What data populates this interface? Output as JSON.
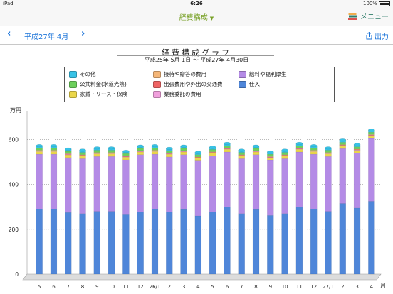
{
  "status_bar": {
    "device": "iPad",
    "time": "6:26",
    "battery": "100%"
  },
  "nav": {
    "title": "経費構成",
    "menu_label": "メニュー"
  },
  "toolbar": {
    "period": "平成27年 4月",
    "prev_icon": "chevron-left-icon",
    "next_icon": "chevron-right-icon",
    "output_label": "出力"
  },
  "colors": {
    "accent": "#7aa22a",
    "link": "#1a73d9",
    "menu": "#2f7d6a"
  },
  "chart_data": {
    "type": "bar",
    "stacked": true,
    "title": "経費構成グラフ",
    "subtitle": "平成25年 5月 1日 〜 平成27年 4月30日",
    "ylabel": "万円",
    "xlabel": "月",
    "ylim": [
      0,
      700
    ],
    "yticks": [
      0,
      200,
      400,
      600
    ],
    "grid": true,
    "legend_position": "top",
    "categories": [
      "5",
      "6",
      "7",
      "8",
      "9",
      "10",
      "11",
      "12",
      "26/1",
      "2",
      "3",
      "4",
      "5",
      "6",
      "7",
      "8",
      "9",
      "10",
      "11",
      "12",
      "27/1",
      "2",
      "3",
      "4"
    ],
    "series": [
      {
        "name": "仕入",
        "color": "#4f86d9",
        "values": [
          290,
          290,
          275,
          270,
          280,
          280,
          265,
          278,
          290,
          278,
          288,
          260,
          278,
          300,
          270,
          288,
          262,
          270,
          300,
          290,
          280,
          315,
          295,
          325
        ]
      },
      {
        "name": "給料や福利厚生",
        "color": "#b48be6",
        "values": [
          245,
          245,
          245,
          245,
          245,
          245,
          245,
          255,
          245,
          245,
          245,
          245,
          250,
          245,
          245,
          245,
          245,
          245,
          245,
          245,
          245,
          245,
          245,
          280
        ]
      },
      {
        "name": "家賃・リース・保険",
        "color": "#ead64a",
        "values": [
          12,
          12,
          12,
          12,
          12,
          12,
          12,
          12,
          12,
          12,
          12,
          12,
          12,
          12,
          12,
          12,
          12,
          12,
          12,
          12,
          12,
          12,
          12,
          12
        ]
      },
      {
        "name": "業務委託の費用",
        "color": "#f0a0dc",
        "values": [
          2,
          2,
          2,
          2,
          2,
          2,
          2,
          2,
          2,
          2,
          2,
          2,
          2,
          2,
          2,
          2,
          2,
          2,
          2,
          2,
          2,
          2,
          2,
          2
        ]
      },
      {
        "name": "出張費用や外出の交通費",
        "color": "#ef6464",
        "values": [
          2,
          2,
          2,
          2,
          2,
          2,
          2,
          2,
          2,
          2,
          2,
          2,
          2,
          2,
          2,
          2,
          2,
          2,
          2,
          2,
          2,
          2,
          2,
          2
        ]
      },
      {
        "name": "接待や贈答の費用",
        "color": "#f4b678",
        "values": [
          2,
          2,
          2,
          2,
          2,
          2,
          2,
          2,
          2,
          2,
          2,
          2,
          2,
          2,
          2,
          2,
          2,
          2,
          2,
          2,
          2,
          2,
          2,
          2
        ]
      },
      {
        "name": "公共料金(水道光熱)",
        "color": "#6ccf5c",
        "values": [
          10,
          10,
          10,
          10,
          10,
          10,
          10,
          10,
          10,
          10,
          10,
          10,
          10,
          10,
          10,
          10,
          10,
          10,
          10,
          10,
          10,
          10,
          10,
          10
        ]
      },
      {
        "name": "その他",
        "color": "#38c2e6",
        "values": [
          10,
          10,
          10,
          10,
          10,
          10,
          10,
          10,
          10,
          10,
          10,
          10,
          10,
          10,
          10,
          10,
          10,
          10,
          10,
          10,
          10,
          10,
          10,
          10
        ]
      }
    ]
  }
}
